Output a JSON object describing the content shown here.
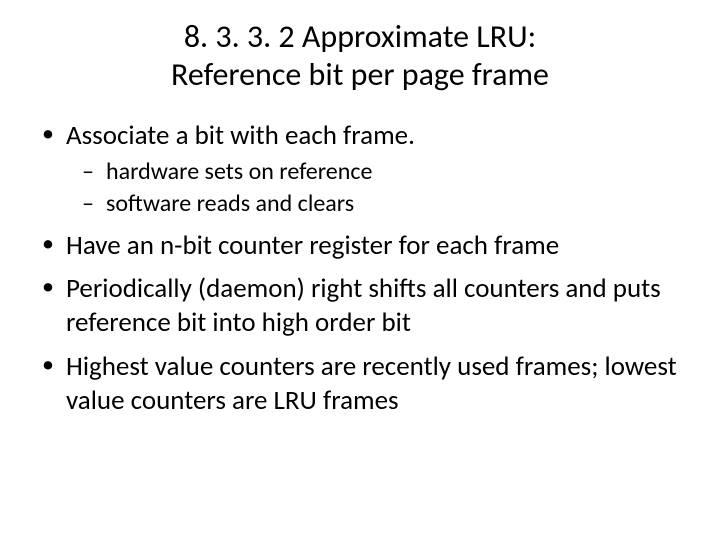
{
  "title_line1": "8. 3. 3. 2 Approximate LRU:",
  "title_line2": "Reference bit per page frame",
  "bullets": [
    {
      "text": "Associate a bit with each frame.",
      "sub": [
        "hardware sets on reference",
        "software reads and clears"
      ]
    },
    {
      "text": "Have an n-bit counter register for each frame"
    },
    {
      "text": "Periodically (daemon) right shifts all counters and puts reference bit into high order bit"
    },
    {
      "text": "Highest value counters are recently used frames; lowest value counters are LRU frames"
    }
  ],
  "colors": {
    "background": "#ffffff",
    "text": "#000000"
  },
  "typography": {
    "title_fontsize": 32,
    "body_fontsize": 27,
    "sub_fontsize": 24,
    "font_family": "Calibri"
  }
}
